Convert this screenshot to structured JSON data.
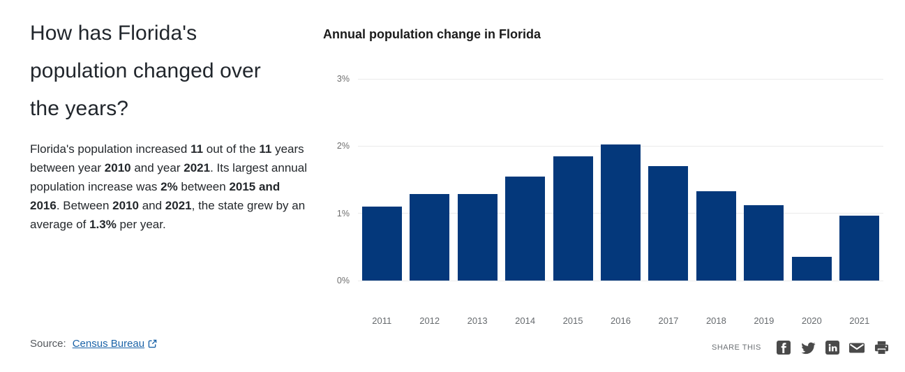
{
  "page": {
    "background": "#ffffff"
  },
  "left_panel": {
    "heading": "How has Florida's population changed over the years?",
    "paragraph_segments": [
      {
        "t": "Florida's population increased ",
        "b": false
      },
      {
        "t": "11",
        "b": true
      },
      {
        "t": " out of the ",
        "b": false
      },
      {
        "t": "11",
        "b": true
      },
      {
        "t": " years between year ",
        "b": false
      },
      {
        "t": "2010",
        "b": true
      },
      {
        "t": " and year ",
        "b": false
      },
      {
        "t": "2021",
        "b": true
      },
      {
        "t": ". Its largest annual population increase was ",
        "b": false
      },
      {
        "t": "2%",
        "b": true
      },
      {
        "t": " between ",
        "b": false
      },
      {
        "t": "2015 and 2016",
        "b": true
      },
      {
        "t": ". Between ",
        "b": false
      },
      {
        "t": "2010",
        "b": true
      },
      {
        "t": " and ",
        "b": false
      },
      {
        "t": "2021",
        "b": true
      },
      {
        "t": ", the state grew by an average of ",
        "b": false
      },
      {
        "t": "1.3%",
        "b": true
      },
      {
        "t": " per year.",
        "b": false
      }
    ],
    "source": {
      "label": "Source:",
      "link_text": "Census Bureau",
      "icon": "external-link-icon",
      "link_color": "#1b63a8"
    }
  },
  "chart_data": {
    "type": "bar",
    "title": "Annual population change in Florida",
    "categories": [
      "2011",
      "2012",
      "2013",
      "2014",
      "2015",
      "2016",
      "2017",
      "2018",
      "2019",
      "2020",
      "2021"
    ],
    "values": [
      1.1,
      1.29,
      1.29,
      1.55,
      1.85,
      2.02,
      1.7,
      1.33,
      1.12,
      0.35,
      0.97
    ],
    "xlabel": "",
    "ylabel": "",
    "ylim": [
      0,
      3
    ],
    "yticks": [
      "0%",
      "1%",
      "2%",
      "3%"
    ],
    "grid": true,
    "legend": "none",
    "bar_color": "#04387b",
    "gridline_color": "#ebebeb"
  },
  "share": {
    "label": "SHARE THIS",
    "icons": [
      "facebook",
      "twitter",
      "linkedin",
      "email",
      "print"
    ],
    "icon_color": "#4a4a4a"
  }
}
